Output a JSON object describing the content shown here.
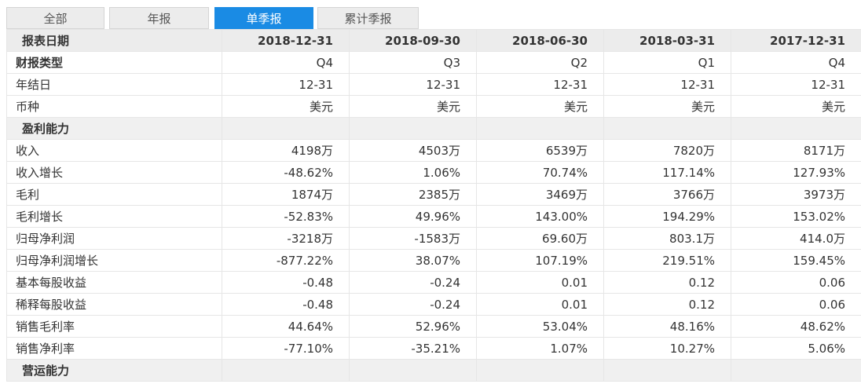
{
  "tabs": [
    "全部",
    "年报",
    "单季报",
    "累计季报"
  ],
  "active_tab_index": 2,
  "colors": {
    "active_tab": "#1a8be4",
    "header_bg": "#ececec",
    "section_bg": "#f0f0f0"
  },
  "header": {
    "label": "报表日期",
    "dates": [
      "2018-12-31",
      "2018-09-30",
      "2018-06-30",
      "2018-03-31",
      "2017-12-31"
    ]
  },
  "meta_rows": [
    {
      "label": "财报类型",
      "values": [
        "Q4",
        "Q3",
        "Q2",
        "Q1",
        "Q4"
      ]
    },
    {
      "label": "年结日",
      "values": [
        "12-31",
        "12-31",
        "12-31",
        "12-31",
        "12-31"
      ]
    },
    {
      "label": "币种",
      "values": [
        "美元",
        "美元",
        "美元",
        "美元",
        "美元"
      ]
    }
  ],
  "section_profitability": "盈利能力",
  "profit_rows": [
    {
      "label": "收入",
      "values": [
        "4198万",
        "4503万",
        "6539万",
        "7820万",
        "8171万"
      ]
    },
    {
      "label": "收入增长",
      "values": [
        "-48.62%",
        "1.06%",
        "70.74%",
        "117.14%",
        "127.93%"
      ]
    },
    {
      "label": "毛利",
      "values": [
        "1874万",
        "2385万",
        "3469万",
        "3766万",
        "3973万"
      ]
    },
    {
      "label": "毛利增长",
      "values": [
        "-52.83%",
        "49.96%",
        "143.00%",
        "194.29%",
        "153.02%"
      ]
    },
    {
      "label": "归母净利润",
      "values": [
        "-3218万",
        "-1583万",
        "69.60万",
        "803.1万",
        "414.0万"
      ]
    },
    {
      "label": "归母净利润增长",
      "values": [
        "-877.22%",
        "38.07%",
        "107.19%",
        "219.51%",
        "159.45%"
      ]
    },
    {
      "label": "基本每股收益",
      "values": [
        "-0.48",
        "-0.24",
        "0.01",
        "0.12",
        "0.06"
      ]
    },
    {
      "label": "稀释每股收益",
      "values": [
        "-0.48",
        "-0.24",
        "0.01",
        "0.12",
        "0.06"
      ]
    },
    {
      "label": "销售毛利率",
      "values": [
        "44.64%",
        "52.96%",
        "53.04%",
        "48.16%",
        "48.62%"
      ]
    },
    {
      "label": "销售净利率",
      "values": [
        "-77.10%",
        "-35.21%",
        "1.07%",
        "10.27%",
        "5.06%"
      ]
    }
  ],
  "section_operating": "营运能力"
}
